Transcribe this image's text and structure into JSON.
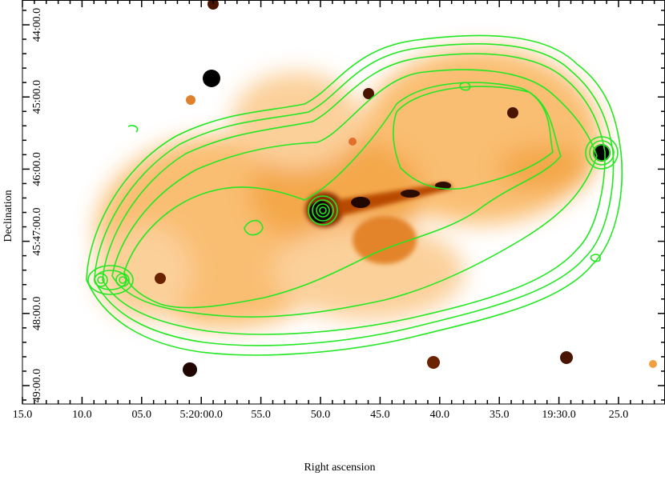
{
  "x_axis": {
    "label": "Right ascension",
    "tick_labels": [
      "15.0",
      "10.0",
      "05.0",
      "5:20:00.0",
      "55.0",
      "50.0",
      "45.0",
      "40.0",
      "35.0",
      "19:30.0",
      "25.0"
    ]
  },
  "y_axis": {
    "label": "Declination",
    "tick_labels": [
      "44:00.0",
      "45:00.0",
      "46:00.0",
      "45:47:00.0",
      "48:00.0",
      "49:00.0"
    ]
  }
}
